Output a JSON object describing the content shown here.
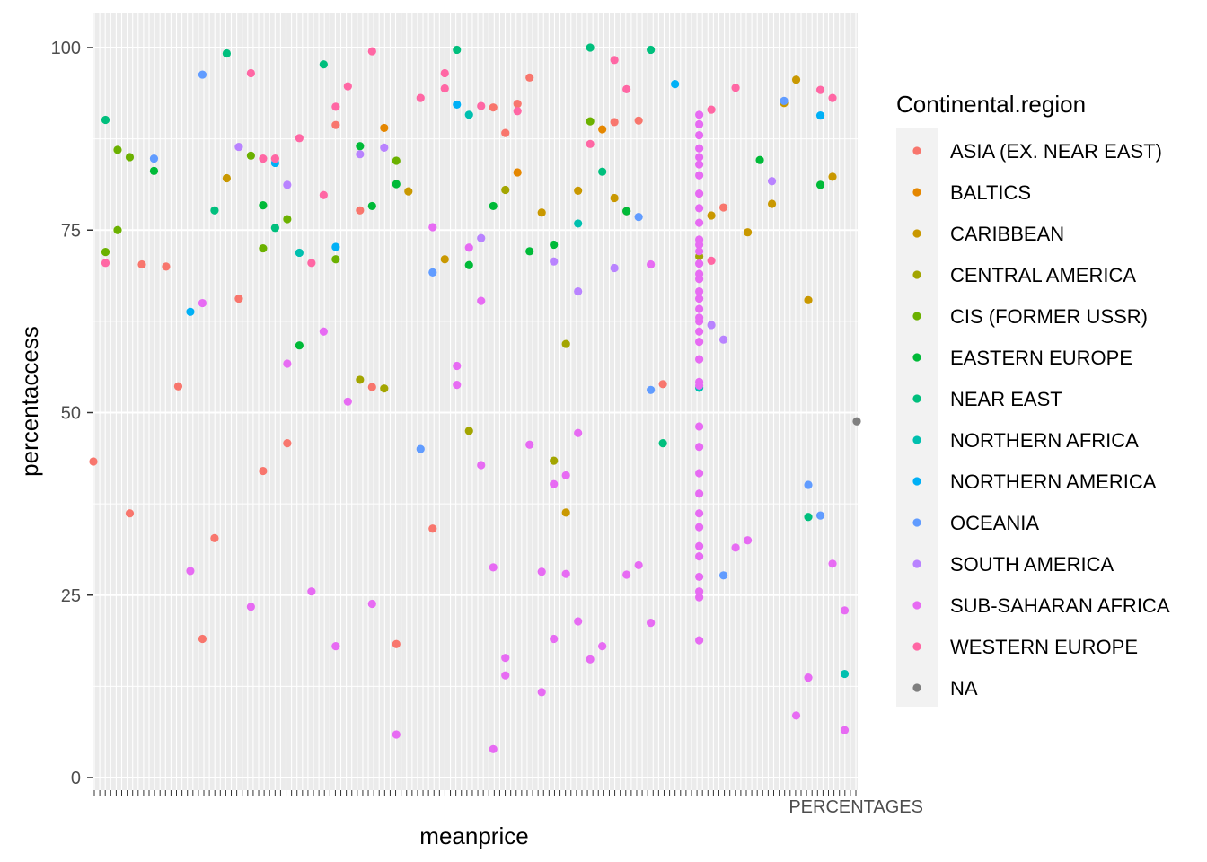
{
  "chart_data": {
    "type": "scatter",
    "xlabel": "meanprice",
    "ylabel": "percentaccess",
    "x_axis_note": "categorical axis with overlapping tick labels; visible end label",
    "x_last_tick_label": "PERCENTAGES",
    "ylim": [
      0,
      100
    ],
    "y_ticks": [
      0,
      25,
      50,
      75,
      100
    ],
    "grid": true,
    "legend": {
      "title": "Continental.region",
      "placement": "right"
    },
    "colors": {
      "panel_background": "#ebebeb",
      "grid": "#ffffff"
    },
    "series": [
      {
        "name": "ASIA (EX. NEAR EAST)",
        "color": "#F8766D",
        "points": [
          {
            "x": 0,
            "y": 43.3
          },
          {
            "x": 4,
            "y": 70.3
          },
          {
            "x": 6,
            "y": 70.0
          },
          {
            "x": 3,
            "y": 36.2
          },
          {
            "x": 7,
            "y": 53.6
          },
          {
            "x": 9,
            "y": 19.0
          },
          {
            "x": 10,
            "y": 32.8
          },
          {
            "x": 12,
            "y": 65.6
          },
          {
            "x": 14,
            "y": 42.0
          },
          {
            "x": 16,
            "y": 45.8
          },
          {
            "x": 20,
            "y": 89.4
          },
          {
            "x": 22,
            "y": 77.7
          },
          {
            "x": 23,
            "y": 53.5
          },
          {
            "x": 25,
            "y": 18.3
          },
          {
            "x": 28,
            "y": 34.1
          },
          {
            "x": 33,
            "y": 91.8
          },
          {
            "x": 36,
            "y": 95.9
          },
          {
            "x": 34,
            "y": 88.3
          },
          {
            "x": 44,
            "y": 77.6
          },
          {
            "x": 45,
            "y": 90.0
          },
          {
            "x": 47,
            "y": 53.9
          },
          {
            "x": 52,
            "y": 78.1
          },
          {
            "x": 35,
            "y": 92.3
          },
          {
            "x": 43,
            "y": 89.8
          }
        ]
      },
      {
        "name": "BALTICS",
        "color": "#E58700",
        "points": [
          {
            "x": 24,
            "y": 89.0
          },
          {
            "x": 35,
            "y": 82.9
          },
          {
            "x": 42,
            "y": 88.8
          }
        ]
      },
      {
        "name": "CARIBBEAN",
        "color": "#C99800",
        "points": [
          {
            "x": 11,
            "y": 82.1
          },
          {
            "x": 26,
            "y": 80.3
          },
          {
            "x": 29,
            "y": 71.0
          },
          {
            "x": 39,
            "y": 36.3
          },
          {
            "x": 37,
            "y": 77.4
          },
          {
            "x": 40,
            "y": 80.4
          },
          {
            "x": 43,
            "y": 79.4
          },
          {
            "x": 51,
            "y": 77.0
          },
          {
            "x": 54,
            "y": 74.7
          },
          {
            "x": 56,
            "y": 78.6
          },
          {
            "x": 57,
            "y": 92.4
          },
          {
            "x": 58,
            "y": 95.6
          },
          {
            "x": 59,
            "y": 65.4
          },
          {
            "x": 61,
            "y": 82.3
          }
        ]
      },
      {
        "name": "CENTRAL AMERICA",
        "color": "#A3A500",
        "points": [
          {
            "x": 22,
            "y": 54.5
          },
          {
            "x": 24,
            "y": 53.3
          },
          {
            "x": 31,
            "y": 47.5
          },
          {
            "x": 34,
            "y": 80.5
          },
          {
            "x": 38,
            "y": 43.4
          },
          {
            "x": 39,
            "y": 59.4
          },
          {
            "x": 50,
            "y": 71.4
          }
        ]
      },
      {
        "name": "CIS (FORMER USSR)",
        "color": "#6BB100",
        "points": [
          {
            "x": 1,
            "y": 72.0
          },
          {
            "x": 2,
            "y": 75.0
          },
          {
            "x": 2,
            "y": 86.0
          },
          {
            "x": 3,
            "y": 85.0
          },
          {
            "x": 13,
            "y": 85.2
          },
          {
            "x": 14,
            "y": 72.5
          },
          {
            "x": 16,
            "y": 76.5
          },
          {
            "x": 20,
            "y": 71.0
          },
          {
            "x": 25,
            "y": 84.5
          },
          {
            "x": 41,
            "y": 89.9
          }
        ]
      },
      {
        "name": "EASTERN EUROPE",
        "color": "#00BA38",
        "points": [
          {
            "x": 5,
            "y": 83.1
          },
          {
            "x": 14,
            "y": 78.4
          },
          {
            "x": 17,
            "y": 59.2
          },
          {
            "x": 22,
            "y": 86.5
          },
          {
            "x": 23,
            "y": 78.3
          },
          {
            "x": 25,
            "y": 81.3
          },
          {
            "x": 31,
            "y": 70.2
          },
          {
            "x": 33,
            "y": 78.3
          },
          {
            "x": 36,
            "y": 72.1
          },
          {
            "x": 38,
            "y": 73.0
          },
          {
            "x": 44,
            "y": 77.6
          },
          {
            "x": 55,
            "y": 84.6
          },
          {
            "x": 60,
            "y": 81.2
          }
        ]
      },
      {
        "name": "NEAR EAST",
        "color": "#00BF7D",
        "points": [
          {
            "x": 1,
            "y": 90.1
          },
          {
            "x": 10,
            "y": 77.7
          },
          {
            "x": 11,
            "y": 99.2
          },
          {
            "x": 15,
            "y": 75.3
          },
          {
            "x": 19,
            "y": 97.7
          },
          {
            "x": 30,
            "y": 99.7
          },
          {
            "x": 41,
            "y": 100.0
          },
          {
            "x": 42,
            "y": 83.0
          },
          {
            "x": 46,
            "y": 99.7
          },
          {
            "x": 47,
            "y": 45.8
          },
          {
            "x": 59,
            "y": 35.7
          }
        ]
      },
      {
        "name": "NORTHERN AFRICA",
        "color": "#00C0AF",
        "points": [
          {
            "x": 17,
            "y": 71.9
          },
          {
            "x": 31,
            "y": 90.8
          },
          {
            "x": 40,
            "y": 75.9
          },
          {
            "x": 50,
            "y": 53.4
          },
          {
            "x": 62,
            "y": 14.2
          }
        ]
      },
      {
        "name": "NORTHERN AMERICA",
        "color": "#00B0F6",
        "points": [
          {
            "x": 8,
            "y": 63.8
          },
          {
            "x": 15,
            "y": 84.2
          },
          {
            "x": 20,
            "y": 72.7
          },
          {
            "x": 30,
            "y": 92.2
          },
          {
            "x": 48,
            "y": 95.0
          },
          {
            "x": 60,
            "y": 90.7
          }
        ]
      },
      {
        "name": "OCEANIA",
        "color": "#619CFF",
        "points": [
          {
            "x": 5,
            "y": 84.8
          },
          {
            "x": 9,
            "y": 96.3
          },
          {
            "x": 27,
            "y": 45.0
          },
          {
            "x": 28,
            "y": 69.2
          },
          {
            "x": 45,
            "y": 76.8
          },
          {
            "x": 46,
            "y": 53.1
          },
          {
            "x": 52,
            "y": 27.7
          },
          {
            "x": 57,
            "y": 92.7
          },
          {
            "x": 59,
            "y": 40.1
          },
          {
            "x": 60,
            "y": 35.9
          }
        ]
      },
      {
        "name": "SOUTH AMERICA",
        "color": "#B983FF",
        "points": [
          {
            "x": 12,
            "y": 86.4
          },
          {
            "x": 16,
            "y": 81.2
          },
          {
            "x": 22,
            "y": 85.4
          },
          {
            "x": 24,
            "y": 86.3
          },
          {
            "x": 32,
            "y": 73.9
          },
          {
            "x": 38,
            "y": 70.7
          },
          {
            "x": 40,
            "y": 66.6
          },
          {
            "x": 43,
            "y": 69.8
          },
          {
            "x": 51,
            "y": 62.0
          },
          {
            "x": 52,
            "y": 60.0
          },
          {
            "x": 56,
            "y": 81.7
          }
        ]
      },
      {
        "name": "SUB-SAHARAN AFRICA",
        "color": "#E76BF3",
        "points": [
          {
            "x": 8,
            "y": 28.3
          },
          {
            "x": 9,
            "y": 65.0
          },
          {
            "x": 13,
            "y": 23.4
          },
          {
            "x": 16,
            "y": 56.7
          },
          {
            "x": 18,
            "y": 25.5
          },
          {
            "x": 19,
            "y": 61.1
          },
          {
            "x": 20,
            "y": 18.0
          },
          {
            "x": 21,
            "y": 51.5
          },
          {
            "x": 23,
            "y": 23.8
          },
          {
            "x": 25,
            "y": 5.9
          },
          {
            "x": 28,
            "y": 75.4
          },
          {
            "x": 30,
            "y": 53.8
          },
          {
            "x": 30,
            "y": 56.4
          },
          {
            "x": 31,
            "y": 72.6
          },
          {
            "x": 32,
            "y": 65.3
          },
          {
            "x": 32,
            "y": 42.8
          },
          {
            "x": 33,
            "y": 28.8
          },
          {
            "x": 33,
            "y": 3.9
          },
          {
            "x": 34,
            "y": 16.4
          },
          {
            "x": 34,
            "y": 14.0
          },
          {
            "x": 36,
            "y": 45.6
          },
          {
            "x": 37,
            "y": 11.7
          },
          {
            "x": 37,
            "y": 28.2
          },
          {
            "x": 38,
            "y": 19.0
          },
          {
            "x": 38,
            "y": 40.2
          },
          {
            "x": 39,
            "y": 41.4
          },
          {
            "x": 39,
            "y": 27.9
          },
          {
            "x": 40,
            "y": 47.2
          },
          {
            "x": 40,
            "y": 21.4
          },
          {
            "x": 41,
            "y": 16.2
          },
          {
            "x": 42,
            "y": 18.0
          },
          {
            "x": 44,
            "y": 27.8
          },
          {
            "x": 45,
            "y": 29.1
          },
          {
            "x": 46,
            "y": 70.3
          },
          {
            "x": 46,
            "y": 21.2
          },
          {
            "x": 53,
            "y": 31.5
          },
          {
            "x": 54,
            "y": 32.5
          },
          {
            "x": 58,
            "y": 8.5
          },
          {
            "x": 59,
            "y": 13.7
          },
          {
            "x": 61,
            "y": 29.3
          },
          {
            "x": 62,
            "y": 22.9
          },
          {
            "x": 62,
            "y": 6.5
          },
          {
            "x": 50,
            "y": 90.8
          },
          {
            "x": 50,
            "y": 89.5
          },
          {
            "x": 50,
            "y": 88.0
          },
          {
            "x": 50,
            "y": 86.2
          },
          {
            "x": 50,
            "y": 85.0
          },
          {
            "x": 50,
            "y": 84.0
          },
          {
            "x": 50,
            "y": 82.5
          },
          {
            "x": 50,
            "y": 80.0
          },
          {
            "x": 50,
            "y": 78.0
          },
          {
            "x": 50,
            "y": 76.0
          },
          {
            "x": 50,
            "y": 73.7
          },
          {
            "x": 50,
            "y": 73.0
          },
          {
            "x": 50,
            "y": 72.1
          },
          {
            "x": 50,
            "y": 70.4
          },
          {
            "x": 50,
            "y": 69.0
          },
          {
            "x": 50,
            "y": 68.3
          },
          {
            "x": 50,
            "y": 66.6
          },
          {
            "x": 50,
            "y": 65.6
          },
          {
            "x": 50,
            "y": 64.2
          },
          {
            "x": 50,
            "y": 63.0
          },
          {
            "x": 50,
            "y": 62.5
          },
          {
            "x": 50,
            "y": 61.1
          },
          {
            "x": 50,
            "y": 59.7
          },
          {
            "x": 50,
            "y": 57.3
          },
          {
            "x": 50,
            "y": 54.2
          },
          {
            "x": 50,
            "y": 53.7
          },
          {
            "x": 50,
            "y": 48.1
          },
          {
            "x": 50,
            "y": 45.3
          },
          {
            "x": 50,
            "y": 41.7
          },
          {
            "x": 50,
            "y": 38.9
          },
          {
            "x": 50,
            "y": 36.2
          },
          {
            "x": 50,
            "y": 34.3
          },
          {
            "x": 50,
            "y": 31.7
          },
          {
            "x": 50,
            "y": 30.3
          },
          {
            "x": 50,
            "y": 27.5
          },
          {
            "x": 50,
            "y": 25.5
          },
          {
            "x": 50,
            "y": 24.7
          },
          {
            "x": 50,
            "y": 18.8
          }
        ]
      },
      {
        "name": "WESTERN EUROPE",
        "color": "#FF67A4",
        "points": [
          {
            "x": 1,
            "y": 70.5
          },
          {
            "x": 13,
            "y": 96.5
          },
          {
            "x": 14,
            "y": 84.8
          },
          {
            "x": 15,
            "y": 84.8
          },
          {
            "x": 17,
            "y": 87.6
          },
          {
            "x": 18,
            "y": 70.5
          },
          {
            "x": 19,
            "y": 79.8
          },
          {
            "x": 20,
            "y": 91.9
          },
          {
            "x": 21,
            "y": 94.7
          },
          {
            "x": 23,
            "y": 99.5
          },
          {
            "x": 27,
            "y": 93.1
          },
          {
            "x": 29,
            "y": 96.5
          },
          {
            "x": 32,
            "y": 92.0
          },
          {
            "x": 35,
            "y": 91.3
          },
          {
            "x": 41,
            "y": 86.8
          },
          {
            "x": 43,
            "y": 98.3
          },
          {
            "x": 44,
            "y": 94.3
          },
          {
            "x": 51,
            "y": 91.5
          },
          {
            "x": 53,
            "y": 94.5
          },
          {
            "x": 60,
            "y": 94.2
          },
          {
            "x": 61,
            "y": 93.1
          },
          {
            "x": 51,
            "y": 70.8
          },
          {
            "x": 29,
            "y": 94.4
          }
        ]
      },
      {
        "name": "NA",
        "color": "#7F7F7F",
        "points": [
          {
            "x": 63,
            "y": 48.8
          }
        ]
      }
    ]
  }
}
